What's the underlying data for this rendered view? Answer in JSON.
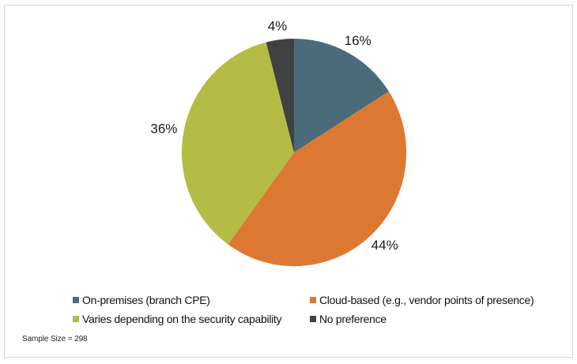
{
  "chart_data": {
    "type": "pie",
    "title": "",
    "categories": [
      "On-premises (branch CPE)",
      "Cloud-based (e.g., vendor points of presence)",
      "Varies depending on the security capability",
      "No preference"
    ],
    "values": [
      16,
      44,
      36,
      4
    ],
    "slices": [
      {
        "label": "On-premises (branch CPE)",
        "value": 16,
        "display": "16%",
        "color": "#4a6b7a"
      },
      {
        "label": "Cloud-based (e.g., vendor points of presence)",
        "value": 44,
        "display": "44%",
        "color": "#dd7832"
      },
      {
        "label": "Varies depending on the security capability",
        "value": 36,
        "display": "36%",
        "color": "#b4bc45"
      },
      {
        "label": "No preference",
        "value": 4,
        "display": "4%",
        "color": "#3f4142"
      }
    ],
    "start_angle_deg": 0,
    "direction": "clockwise",
    "legend_position": "bottom",
    "legend_columns": 2,
    "data_labels": "outside"
  },
  "colors": {
    "background": "#ffffff",
    "frame_border": "#d4d4d4",
    "label_text": "#1a1a1a"
  },
  "footer": {
    "sample_size": "Sample Size = 298"
  }
}
